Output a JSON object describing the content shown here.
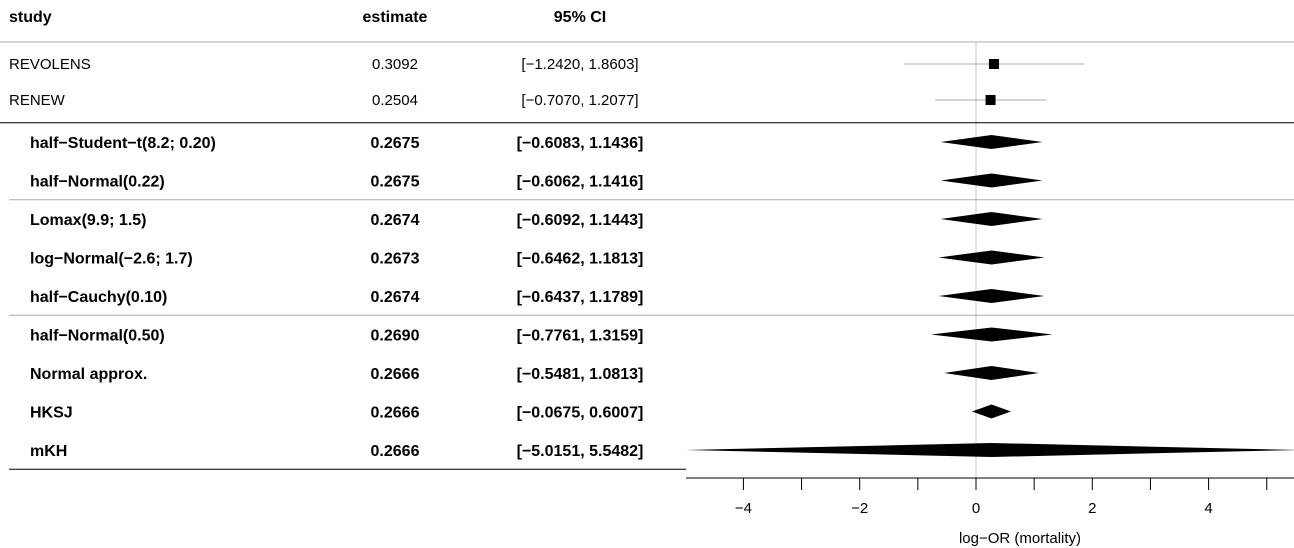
{
  "headers": {
    "study": "study",
    "estimate": "estimate",
    "ci": "95% CI"
  },
  "colors": {
    "ink": "#000000",
    "ci_line": "#aaaaaa",
    "zero_line": "#c8c8c8",
    "separator": "#aaaaaa"
  },
  "chart_data": {
    "type": "forest",
    "xlabel": "log−OR (mortality)",
    "xlim": [
      -5.4,
      5.4
    ],
    "xticks": [
      -4,
      -3,
      -2,
      -1,
      0,
      1,
      2,
      3,
      4,
      5
    ],
    "xtick_labels": [
      "−4",
      "",
      "−2",
      "",
      "0",
      "",
      "2",
      "",
      "4",
      ""
    ],
    "reference_line": 0,
    "studies": [
      {
        "label": "REVOLENS",
        "estimate": 0.3092,
        "lower": -1.242,
        "upper": 1.8603,
        "estimate_text": "0.3092",
        "ci_text": "[−1.2420, 1.8603]"
      },
      {
        "label": "RENEW",
        "estimate": 0.2504,
        "lower": -0.707,
        "upper": 1.2077,
        "estimate_text": "0.2504",
        "ci_text": "[−0.7070, 1.2077]"
      }
    ],
    "summary_groups": [
      [
        {
          "label": "half−Student−t(8.2; 0.20)",
          "estimate": 0.2675,
          "lower": -0.6083,
          "upper": 1.1436,
          "estimate_text": "0.2675",
          "ci_text": "[−0.6083, 1.1436]"
        },
        {
          "label": "half−Normal(0.22)",
          "estimate": 0.2675,
          "lower": -0.6062,
          "upper": 1.1416,
          "estimate_text": "0.2675",
          "ci_text": "[−0.6062, 1.1416]"
        }
      ],
      [
        {
          "label": "Lomax(9.9; 1.5)",
          "estimate": 0.2674,
          "lower": -0.6092,
          "upper": 1.1443,
          "estimate_text": "0.2674",
          "ci_text": "[−0.6092, 1.1443]"
        },
        {
          "label": "log−Normal(−2.6; 1.7)",
          "estimate": 0.2673,
          "lower": -0.6462,
          "upper": 1.1813,
          "estimate_text": "0.2673",
          "ci_text": "[−0.6462, 1.1813]"
        },
        {
          "label": "half−Cauchy(0.10)",
          "estimate": 0.2674,
          "lower": -0.6437,
          "upper": 1.1789,
          "estimate_text": "0.2674",
          "ci_text": "[−0.6437, 1.1789]"
        }
      ],
      [
        {
          "label": "half−Normal(0.50)",
          "estimate": 0.269,
          "lower": -0.7761,
          "upper": 1.3159,
          "estimate_text": "0.2690",
          "ci_text": "[−0.7761, 1.3159]"
        },
        {
          "label": "Normal approx.",
          "estimate": 0.2666,
          "lower": -0.5481,
          "upper": 1.0813,
          "estimate_text": "0.2666",
          "ci_text": "[−0.5481, 1.0813]"
        },
        {
          "label": "HKSJ",
          "estimate": 0.2666,
          "lower": -0.0675,
          "upper": 0.6007,
          "estimate_text": "0.2666",
          "ci_text": "[−0.0675, 0.6007]"
        },
        {
          "label": "mKH",
          "estimate": 0.2666,
          "lower": -5.0151,
          "upper": 5.5482,
          "estimate_text": "0.2666",
          "ci_text": "[−5.0151, 5.5482]"
        }
      ]
    ]
  }
}
